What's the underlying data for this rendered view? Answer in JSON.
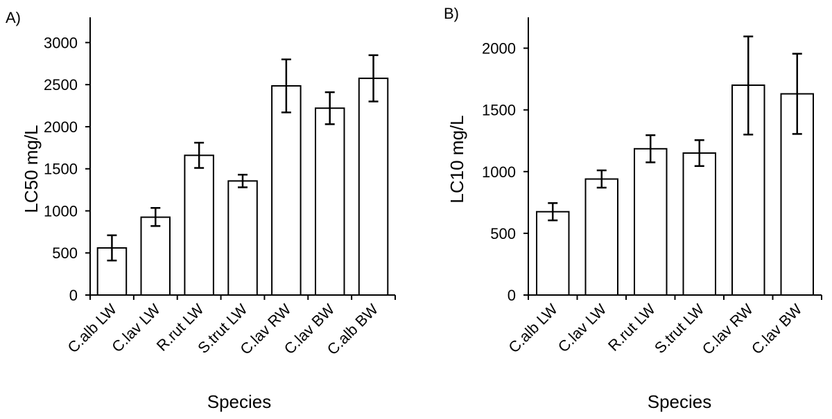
{
  "chart_data": [
    {
      "type": "bar",
      "panel_label": "A)",
      "xlabel": "Species",
      "ylabel": "LC50 mg/L",
      "ylim": [
        0,
        3300
      ],
      "yticks": [
        0,
        500,
        1000,
        1500,
        2000,
        2500,
        3000
      ],
      "categories": [
        "C.alb LW",
        "C.lav LW",
        "R.rut LW",
        "S.trut LW",
        "C.lav RW",
        "C.lav BW",
        "C.alb BW"
      ],
      "values": [
        560,
        925,
        1660,
        1355,
        2485,
        2220,
        2575
      ],
      "error_low": [
        410,
        820,
        1510,
        1280,
        2170,
        2030,
        2300
      ],
      "error_high": [
        710,
        1035,
        1810,
        1430,
        2800,
        2410,
        2850
      ],
      "bar_fill": "#ffffff",
      "bar_stroke": "#000000",
      "grid": false
    },
    {
      "type": "bar",
      "panel_label": "B)",
      "xlabel": "Species",
      "ylabel": "LC10 mg/L",
      "ylim": [
        0,
        2250
      ],
      "yticks": [
        0,
        500,
        1000,
        1500,
        2000
      ],
      "categories": [
        "C.alb LW",
        "C.lav LW",
        "R.rut LW",
        "S.trut LW",
        "C.lav RW",
        "C.lav BW"
      ],
      "values": [
        675,
        940,
        1185,
        1150,
        1700,
        1630
      ],
      "error_low": [
        605,
        870,
        1075,
        1045,
        1300,
        1305
      ],
      "error_high": [
        745,
        1010,
        1295,
        1255,
        2095,
        1955
      ],
      "bar_fill": "#ffffff",
      "bar_stroke": "#000000",
      "grid": false
    }
  ]
}
